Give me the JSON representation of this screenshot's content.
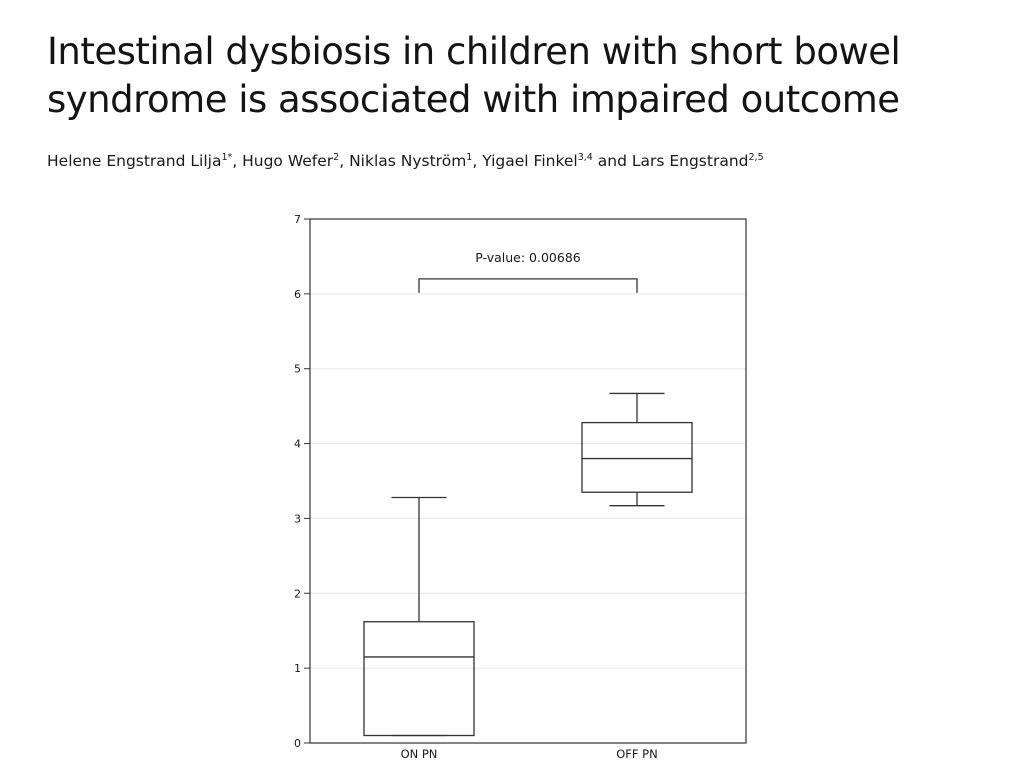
{
  "article": {
    "title_lines": [
      "Intestinal dysbiosis in children with short bowel",
      "syndrome is associated with impaired outcome"
    ],
    "authors": [
      {
        "name": "Helene Engstrand Lilja",
        "sup": "1*",
        "sep": ", "
      },
      {
        "name": "Hugo Wefer",
        "sup": "2",
        "sep": ", "
      },
      {
        "name": "Niklas Nyström",
        "sup": "1",
        "sep": ", "
      },
      {
        "name": "Yigael Finkel",
        "sup": "3,4",
        "sep": " and "
      },
      {
        "name": "Lars Engstrand",
        "sup": "2,5",
        "sep": ""
      }
    ]
  },
  "chart_data": {
    "type": "boxplot",
    "categories": [
      "ON PN",
      "OFF PN"
    ],
    "boxes": [
      {
        "category": "ON PN",
        "whisker_low": 0.1,
        "q1": 0.1,
        "median": 1.15,
        "q3": 1.62,
        "whisker_high": 3.28
      },
      {
        "category": "OFF PN",
        "whisker_low": 3.17,
        "q1": 3.35,
        "median": 3.8,
        "q3": 4.28,
        "whisker_high": 4.67
      }
    ],
    "ylim": [
      0,
      7
    ],
    "yticks": [
      "0",
      "1",
      "2",
      "3",
      "4",
      "5",
      "6",
      "7"
    ],
    "grid": true,
    "annotation": {
      "text": "P-value: 0.00686",
      "bracket_y": 6.2
    },
    "colors": {
      "box": "#333333",
      "grid": "#e6e6e6",
      "frame": "#333333"
    }
  }
}
